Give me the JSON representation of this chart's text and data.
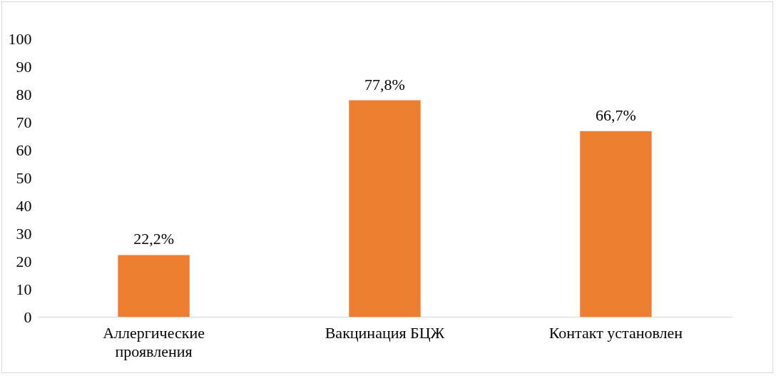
{
  "chart_data": {
    "type": "bar",
    "categories": [
      "Аллергические проявления",
      "Вакцинация БЦЖ",
      "Контакт установлен"
    ],
    "values": [
      22.2,
      77.8,
      66.7
    ],
    "color": "#ed7d31",
    "value_labels": [
      "22,2%",
      "77,8%",
      "66,7%"
    ],
    "ylim": [
      0,
      100
    ],
    "yticks": [
      0,
      10,
      20,
      30,
      40,
      50,
      60,
      70,
      80,
      90,
      100
    ],
    "grid": false
  }
}
